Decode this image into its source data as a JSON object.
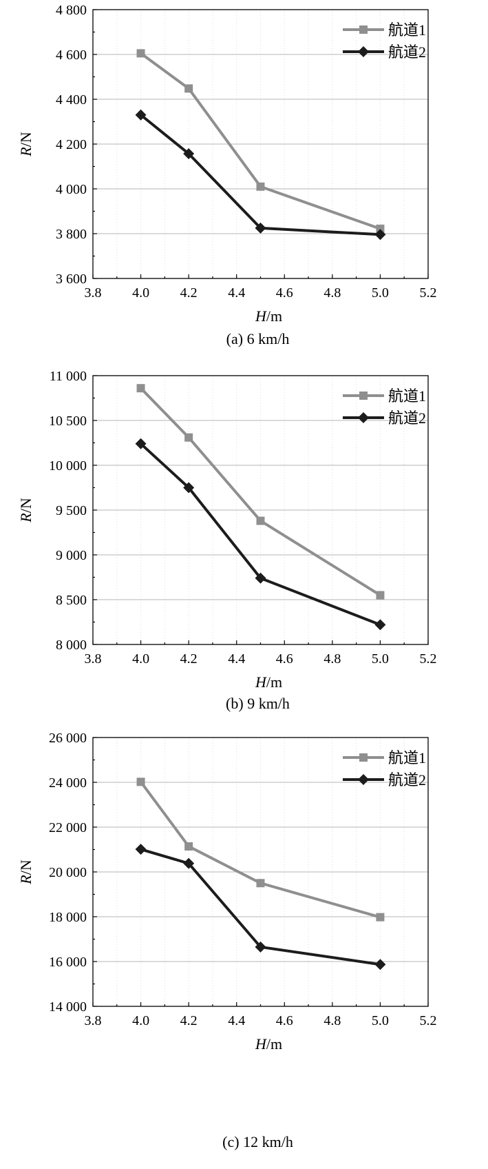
{
  "colors": {
    "series_1": "#8f8f8f",
    "series_2": "#1c1c1c",
    "grid": "#b4b4b4",
    "vgrid": "#dcdcdc"
  },
  "chart_data": [
    {
      "type": "line",
      "caption": "(a) 6 km/h",
      "xlabel_var": "H",
      "xlabel_unit": "/m",
      "ylabel_var": "R",
      "ylabel_unit": "/N",
      "xlim": [
        3.8,
        5.2
      ],
      "ylim": [
        3600,
        4800
      ],
      "xticks": [
        "3.8",
        "4.0",
        "4.2",
        "4.4",
        "4.6",
        "4.8",
        "5.0",
        "5.2"
      ],
      "yticks": [
        "3 600",
        "3 800",
        "4 000",
        "4 200",
        "4 400",
        "4 600",
        "4 800"
      ],
      "grid": true,
      "legend": "top-right",
      "x": [
        4.0,
        4.2,
        4.5,
        5.0
      ],
      "series": [
        {
          "name": "航道1",
          "marker": "square",
          "values": [
            4605,
            4448,
            4010,
            3822
          ]
        },
        {
          "name": "航道2",
          "marker": "diamond",
          "values": [
            4330,
            4157,
            3825,
            3796
          ]
        }
      ]
    },
    {
      "type": "line",
      "caption": "(b) 9 km/h",
      "xlabel_var": "H",
      "xlabel_unit": "/m",
      "ylabel_var": "R",
      "ylabel_unit": "/N",
      "xlim": [
        3.8,
        5.2
      ],
      "ylim": [
        8000,
        11000
      ],
      "xticks": [
        "3.8",
        "4.0",
        "4.2",
        "4.4",
        "4.6",
        "4.8",
        "5.0",
        "5.2"
      ],
      "yticks": [
        "8 000",
        "8 500",
        "9 000",
        "9 500",
        "10 000",
        "10 500",
        "11 000"
      ],
      "grid": true,
      "legend": "top-right",
      "x": [
        4.0,
        4.2,
        4.5,
        5.0
      ],
      "series": [
        {
          "name": "航道1",
          "marker": "square",
          "values": [
            10860,
            10310,
            9380,
            8550
          ]
        },
        {
          "name": "航道2",
          "marker": "diamond",
          "values": [
            10240,
            9750,
            8740,
            8220
          ]
        }
      ]
    },
    {
      "type": "line",
      "caption": "(c) 12 km/h",
      "xlabel_var": "H",
      "xlabel_unit": "/m",
      "ylabel_var": "R",
      "ylabel_unit": "/N",
      "xlim": [
        3.8,
        5.2
      ],
      "ylim": [
        14000,
        26000
      ],
      "xticks": [
        "3.8",
        "4.0",
        "4.2",
        "4.4",
        "4.6",
        "4.8",
        "5.0",
        "5.2"
      ],
      "yticks": [
        "14 000",
        "16 000",
        "18 000",
        "20 000",
        "22 000",
        "24 000",
        "26 000"
      ],
      "grid": true,
      "legend": "top-right",
      "x": [
        4.0,
        4.2,
        4.5,
        5.0
      ],
      "series": [
        {
          "name": "航道1",
          "marker": "square",
          "values": [
            24020,
            21140,
            19500,
            17980
          ]
        },
        {
          "name": "航道2",
          "marker": "diamond",
          "values": [
            21010,
            20380,
            16650,
            15870
          ]
        }
      ]
    }
  ]
}
